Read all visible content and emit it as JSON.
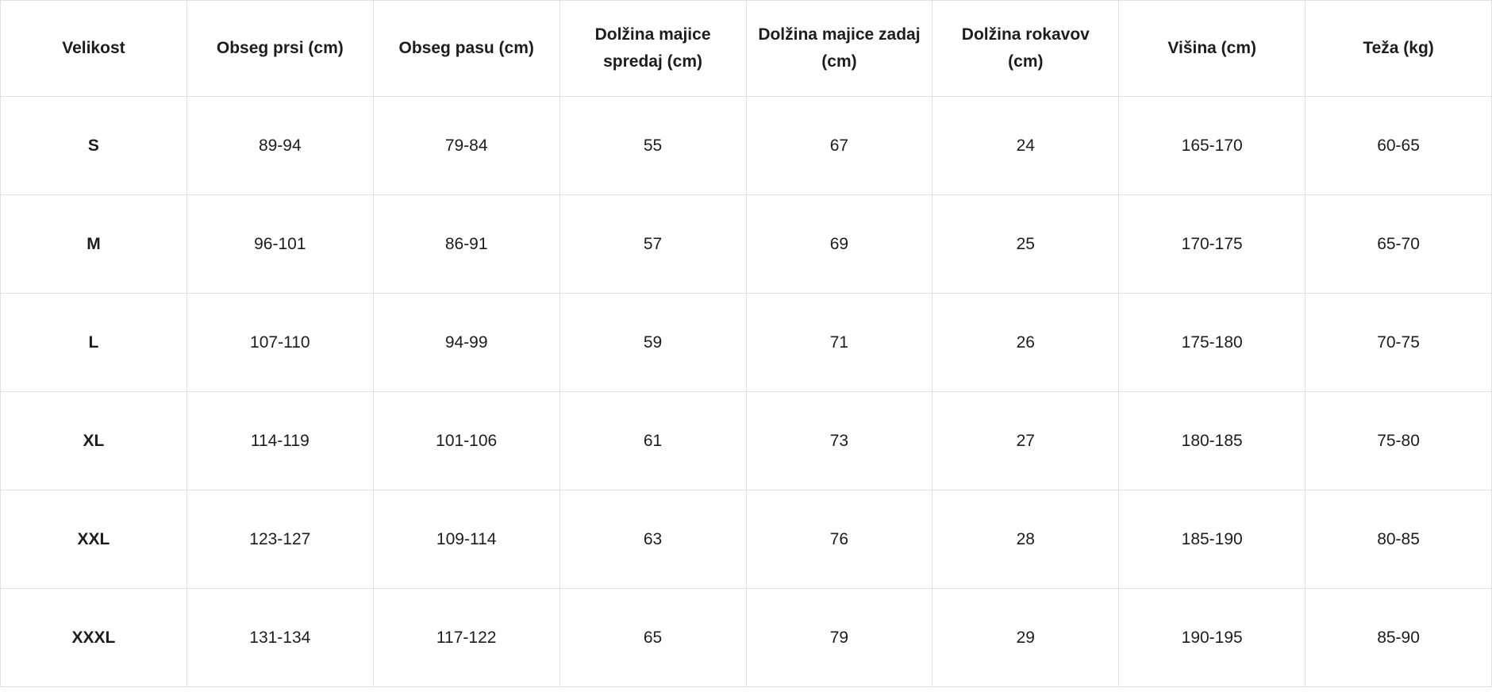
{
  "size_chart": {
    "columns": [
      "Velikost",
      "Obseg prsi (cm)",
      "Obseg pasu (cm)",
      "Dolžina majice spredaj (cm)",
      "Dolžina majice zadaj (cm)",
      "Dolžina rokavov (cm)",
      "Višina (cm)",
      "Teža (kg)"
    ],
    "rows": [
      {
        "size": "S",
        "values": [
          "89-94",
          "79-84",
          "55",
          "67",
          "24",
          "165-170",
          "60-65"
        ]
      },
      {
        "size": "M",
        "values": [
          "96-101",
          "86-91",
          "57",
          "69",
          "25",
          "170-175",
          "65-70"
        ]
      },
      {
        "size": "L",
        "values": [
          "107-110",
          "94-99",
          "59",
          "71",
          "26",
          "175-180",
          "70-75"
        ]
      },
      {
        "size": "XL",
        "values": [
          "114-119",
          "101-106",
          "61",
          "73",
          "27",
          "180-185",
          "75-80"
        ]
      },
      {
        "size": "XXL",
        "values": [
          "123-127",
          "109-114",
          "63",
          "76",
          "28",
          "185-190",
          "80-85"
        ]
      },
      {
        "size": "XXXL",
        "values": [
          "131-134",
          "117-122",
          "65",
          "79",
          "29",
          "190-195",
          "85-90"
        ]
      }
    ]
  },
  "colors": {
    "border": "#e1e1e1",
    "text": "#1d1d1d",
    "cell_background": "#ffffff",
    "page_background": "#ffffff"
  }
}
